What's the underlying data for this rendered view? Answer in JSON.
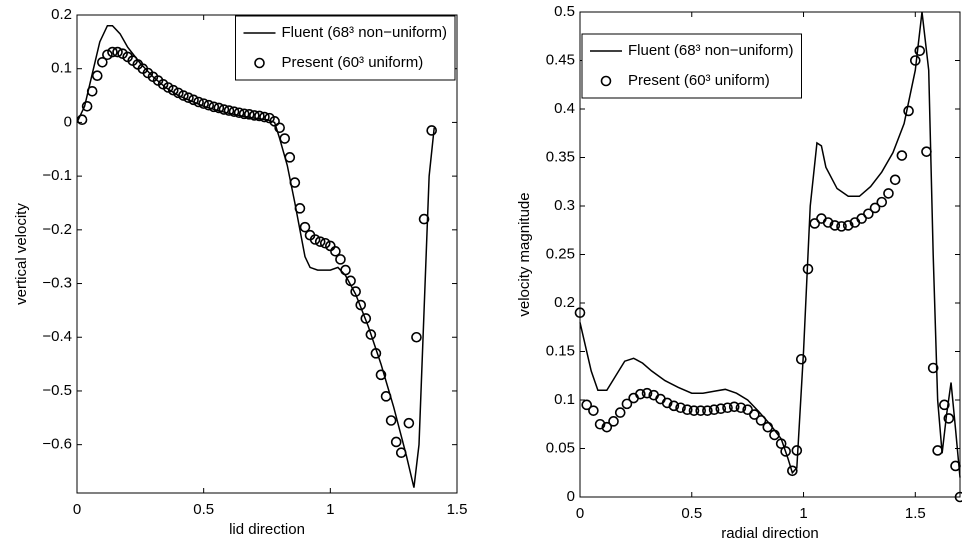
{
  "chart_data": [
    {
      "type": "line",
      "xlabel": "lid direction",
      "ylabel": "vertical velocity",
      "xlim": [
        0,
        1.5
      ],
      "xticks": [
        0,
        0.5,
        1,
        1.5
      ],
      "ylim": [
        -0.69,
        0.2
      ],
      "yticks": [
        {
          "value": -0.6,
          "label": "−0.6"
        },
        {
          "value": -0.5,
          "label": "−0.5"
        },
        {
          "value": -0.4,
          "label": "−0.4"
        },
        {
          "value": -0.3,
          "label": "−0.3"
        },
        {
          "value": -0.2,
          "label": "−0.2"
        },
        {
          "value": -0.1,
          "label": "−0.1"
        },
        0,
        0.1,
        0.2
      ],
      "legend": "upper right",
      "series": [
        {
          "name": "Fluent (68³ non−uniform)",
          "color": "#000000",
          "mode": "line",
          "x": [
            0,
            0.03,
            0.06,
            0.09,
            0.12,
            0.14,
            0.17,
            0.2,
            0.25,
            0.3,
            0.35,
            0.4,
            0.45,
            0.5,
            0.55,
            0.6,
            0.65,
            0.7,
            0.75,
            0.78,
            0.8,
            0.83,
            0.86,
            0.88,
            0.9,
            0.92,
            0.95,
            1.0,
            1.03,
            1.06,
            1.1,
            1.15,
            1.2,
            1.25,
            1.3,
            1.33,
            1.35,
            1.37,
            1.39,
            1.41
          ],
          "values": [
            0,
            0.03,
            0.09,
            0.15,
            0.18,
            0.18,
            0.165,
            0.14,
            0.11,
            0.085,
            0.065,
            0.05,
            0.04,
            0.03,
            0.023,
            0.017,
            0.012,
            0.008,
            0.005,
            0,
            -0.03,
            -0.08,
            -0.15,
            -0.2,
            -0.25,
            -0.27,
            -0.275,
            -0.275,
            -0.27,
            -0.285,
            -0.32,
            -0.38,
            -0.45,
            -0.53,
            -0.62,
            -0.68,
            -0.6,
            -0.35,
            -0.1,
            -0.01
          ]
        },
        {
          "name": "Present (60³ uniform)",
          "color": "#000000",
          "mode": "markers",
          "x": [
            0.02,
            0.04,
            0.06,
            0.08,
            0.1,
            0.12,
            0.14,
            0.16,
            0.18,
            0.2,
            0.22,
            0.24,
            0.26,
            0.28,
            0.3,
            0.32,
            0.34,
            0.36,
            0.38,
            0.4,
            0.42,
            0.44,
            0.46,
            0.48,
            0.5,
            0.52,
            0.54,
            0.56,
            0.58,
            0.6,
            0.62,
            0.64,
            0.66,
            0.68,
            0.7,
            0.72,
            0.74,
            0.76,
            0.78,
            0.8,
            0.82,
            0.84,
            0.86,
            0.88,
            0.9,
            0.92,
            0.94,
            0.96,
            0.98,
            1.0,
            1.02,
            1.04,
            1.06,
            1.08,
            1.1,
            1.12,
            1.14,
            1.16,
            1.18,
            1.2,
            1.22,
            1.24,
            1.26,
            1.28,
            1.31,
            1.34,
            1.37,
            1.4
          ],
          "values": [
            0.005,
            0.03,
            0.058,
            0.087,
            0.112,
            0.126,
            0.131,
            0.131,
            0.128,
            0.122,
            0.115,
            0.108,
            0.1,
            0.092,
            0.085,
            0.078,
            0.071,
            0.065,
            0.06,
            0.055,
            0.05,
            0.046,
            0.042,
            0.038,
            0.035,
            0.032,
            0.029,
            0.027,
            0.024,
            0.022,
            0.02,
            0.018,
            0.016,
            0.015,
            0.013,
            0.012,
            0.01,
            0.008,
            0.002,
            -0.01,
            -0.03,
            -0.065,
            -0.112,
            -0.16,
            -0.195,
            -0.21,
            -0.218,
            -0.222,
            -0.225,
            -0.23,
            -0.24,
            -0.255,
            -0.275,
            -0.295,
            -0.315,
            -0.34,
            -0.365,
            -0.395,
            -0.43,
            -0.47,
            -0.51,
            -0.555,
            -0.595,
            -0.615,
            -0.56,
            -0.4,
            -0.18,
            -0.015
          ]
        }
      ]
    },
    {
      "type": "line",
      "xlabel": "radial direction",
      "ylabel": "velocity magnitude",
      "xlim": [
        0,
        1.7
      ],
      "xticks": [
        0,
        0.5,
        1,
        1.5
      ],
      "ylim": [
        0,
        0.5
      ],
      "yticks": [
        0,
        0.05,
        0.1,
        0.15,
        0.2,
        0.25,
        0.3,
        0.35,
        0.4,
        0.45,
        0.5
      ],
      "legend": "upper left",
      "series": [
        {
          "name": "Fluent (68³ non−uniform)",
          "color": "#000000",
          "mode": "line",
          "x": [
            0,
            0.02,
            0.05,
            0.08,
            0.12,
            0.16,
            0.2,
            0.24,
            0.28,
            0.32,
            0.38,
            0.44,
            0.5,
            0.55,
            0.6,
            0.65,
            0.7,
            0.75,
            0.8,
            0.85,
            0.9,
            0.93,
            0.95,
            0.97,
            1.0,
            1.03,
            1.06,
            1.08,
            1.1,
            1.15,
            1.2,
            1.25,
            1.3,
            1.35,
            1.4,
            1.45,
            1.5,
            1.53,
            1.56,
            1.58,
            1.6,
            1.62,
            1.64,
            1.66,
            1.68,
            1.7
          ],
          "values": [
            0.18,
            0.16,
            0.13,
            0.11,
            0.11,
            0.125,
            0.14,
            0.143,
            0.138,
            0.13,
            0.12,
            0.113,
            0.107,
            0.107,
            0.109,
            0.111,
            0.107,
            0.1,
            0.088,
            0.075,
            0.06,
            0.04,
            0.025,
            0.03,
            0.15,
            0.3,
            0.365,
            0.362,
            0.34,
            0.318,
            0.31,
            0.31,
            0.32,
            0.335,
            0.355,
            0.385,
            0.44,
            0.5,
            0.44,
            0.25,
            0.1,
            0.045,
            0.085,
            0.118,
            0.07,
            0.02
          ]
        },
        {
          "name": "Present (60³ uniform)",
          "color": "#000000",
          "mode": "markers",
          "x": [
            0,
            0.03,
            0.06,
            0.09,
            0.12,
            0.15,
            0.18,
            0.21,
            0.24,
            0.27,
            0.3,
            0.33,
            0.36,
            0.39,
            0.42,
            0.45,
            0.48,
            0.51,
            0.54,
            0.57,
            0.6,
            0.63,
            0.66,
            0.69,
            0.72,
            0.75,
            0.78,
            0.81,
            0.84,
            0.87,
            0.9,
            0.92,
            0.95,
            0.97,
            0.99,
            1.02,
            1.05,
            1.08,
            1.11,
            1.14,
            1.17,
            1.2,
            1.23,
            1.26,
            1.29,
            1.32,
            1.35,
            1.38,
            1.41,
            1.44,
            1.47,
            1.5,
            1.52,
            1.55,
            1.58,
            1.6,
            1.63,
            1.65,
            1.68,
            1.7
          ],
          "values": [
            0.19,
            0.095,
            0.089,
            0.075,
            0.072,
            0.078,
            0.087,
            0.096,
            0.102,
            0.106,
            0.107,
            0.105,
            0.101,
            0.097,
            0.094,
            0.092,
            0.09,
            0.089,
            0.089,
            0.089,
            0.09,
            0.091,
            0.092,
            0.093,
            0.092,
            0.09,
            0.085,
            0.079,
            0.072,
            0.064,
            0.055,
            0.047,
            0.027,
            0.048,
            0.142,
            0.235,
            0.282,
            0.287,
            0.283,
            0.28,
            0.279,
            0.28,
            0.283,
            0.287,
            0.292,
            0.298,
            0.304,
            0.313,
            0.327,
            0.352,
            0.398,
            0.45,
            0.46,
            0.356,
            0.133,
            0.048,
            0.095,
            0.081,
            0.032,
            0
          ]
        }
      ]
    }
  ]
}
